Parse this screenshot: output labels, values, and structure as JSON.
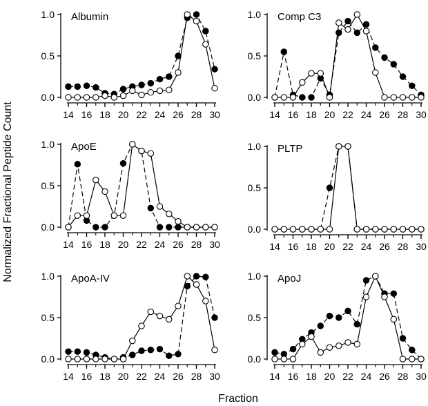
{
  "figure": {
    "xlabel": "Fraction",
    "ylabel": "Normalized Fractional Peptide Count"
  },
  "chart_data": [
    {
      "type": "line",
      "title": "Albumin",
      "x": [
        14,
        15,
        16,
        17,
        18,
        19,
        20,
        21,
        22,
        23,
        24,
        25,
        26,
        27,
        28,
        29,
        30
      ],
      "xlim": [
        14,
        30
      ],
      "ylim": [
        0,
        1
      ],
      "xticks": [
        14,
        16,
        18,
        20,
        22,
        24,
        26,
        28,
        30
      ],
      "yticks": [
        0.0,
        0.5,
        1.0
      ],
      "series": [
        {
          "marker": "filled",
          "line": "dashed",
          "values": [
            0.13,
            0.13,
            0.14,
            0.12,
            0.05,
            0.04,
            0.1,
            0.13,
            0.15,
            0.17,
            0.22,
            0.25,
            0.5,
            0.96,
            1.0,
            0.8,
            0.34
          ]
        },
        {
          "marker": "open",
          "line": "solid",
          "values": [
            0.0,
            0.0,
            0.0,
            0.0,
            0.02,
            0.0,
            0.02,
            0.08,
            0.03,
            0.06,
            0.08,
            0.09,
            0.3,
            1.0,
            0.92,
            0.64,
            0.11
          ]
        }
      ]
    },
    {
      "type": "line",
      "title": "Comp C3",
      "x": [
        14,
        15,
        16,
        17,
        18,
        19,
        20,
        21,
        22,
        23,
        24,
        25,
        26,
        27,
        28,
        29,
        30
      ],
      "xlim": [
        14,
        30
      ],
      "ylim": [
        0,
        1
      ],
      "xticks": [
        14,
        16,
        18,
        20,
        22,
        24,
        26,
        28,
        30
      ],
      "yticks": [
        0.0,
        0.5,
        1.0
      ],
      "series": [
        {
          "marker": "filled",
          "line": "dashed",
          "values": [
            0.0,
            0.55,
            0.03,
            0.0,
            0.0,
            0.23,
            0.03,
            0.78,
            0.92,
            0.78,
            0.88,
            0.6,
            0.48,
            0.4,
            0.25,
            0.14,
            0.03
          ]
        },
        {
          "marker": "open",
          "line": "solid",
          "values": [
            0.0,
            0.0,
            0.0,
            0.18,
            0.29,
            0.29,
            0.0,
            0.9,
            0.82,
            1.0,
            0.8,
            0.3,
            0.0,
            0.0,
            0.0,
            0.0,
            0.0
          ]
        }
      ]
    },
    {
      "type": "line",
      "title": "ApoE",
      "x": [
        14,
        15,
        16,
        17,
        18,
        19,
        20,
        21,
        22,
        23,
        24,
        25,
        26,
        27,
        28,
        29,
        30
      ],
      "xlim": [
        14,
        30
      ],
      "ylim": [
        0,
        1
      ],
      "xticks": [
        14,
        16,
        18,
        20,
        22,
        24,
        26,
        28,
        30
      ],
      "yticks": [
        0.0,
        0.5,
        1.0
      ],
      "series": [
        {
          "marker": "filled",
          "line": "dashed",
          "values": [
            0.0,
            0.76,
            0.08,
            0.0,
            0.0,
            0.14,
            0.77,
            1.0,
            0.92,
            0.23,
            0.0,
            0.0,
            0.0,
            0.0,
            0.0,
            0.0,
            0.0
          ]
        },
        {
          "marker": "open",
          "line": "solid",
          "values": [
            0.0,
            0.14,
            0.14,
            0.57,
            0.43,
            0.14,
            0.14,
            1.0,
            0.92,
            0.89,
            0.25,
            0.16,
            0.07,
            0.0,
            0.0,
            0.0,
            0.0
          ]
        }
      ]
    },
    {
      "type": "line",
      "title": "PLTP",
      "x": [
        14,
        15,
        16,
        17,
        18,
        19,
        20,
        21,
        22,
        23,
        24,
        25,
        26,
        27,
        28,
        29,
        30
      ],
      "xlim": [
        14,
        30
      ],
      "ylim": [
        0,
        1
      ],
      "xticks": [
        14,
        16,
        18,
        20,
        22,
        24,
        26,
        28,
        30
      ],
      "yticks": [
        0.0,
        0.5,
        1.0
      ],
      "series": [
        {
          "marker": "filled",
          "line": "dashed",
          "values": [
            0.0,
            0.0,
            0.0,
            0.0,
            0.0,
            0.0,
            0.5,
            1.0,
            1.0,
            0.0,
            0.0,
            0.0,
            0.0,
            0.0,
            0.0,
            0.0,
            0.0
          ]
        },
        {
          "marker": "open",
          "line": "solid",
          "values": [
            0.0,
            0.0,
            0.0,
            0.0,
            0.0,
            0.0,
            0.0,
            1.0,
            1.0,
            0.0,
            0.0,
            0.0,
            0.0,
            0.0,
            0.0,
            0.0,
            0.0
          ]
        }
      ]
    },
    {
      "type": "line",
      "title": "ApoA-IV",
      "x": [
        14,
        15,
        16,
        17,
        18,
        19,
        20,
        21,
        22,
        23,
        24,
        25,
        26,
        27,
        28,
        29,
        30
      ],
      "xlim": [
        14,
        30
      ],
      "ylim": [
        0,
        1
      ],
      "xticks": [
        14,
        16,
        18,
        20,
        22,
        24,
        26,
        28,
        30
      ],
      "yticks": [
        0.0,
        0.5,
        1.0
      ],
      "series": [
        {
          "marker": "filled",
          "line": "dashed",
          "values": [
            0.09,
            0.09,
            0.08,
            0.05,
            0.02,
            0.0,
            0.02,
            0.05,
            0.1,
            0.11,
            0.12,
            0.04,
            0.06,
            0.88,
            1.0,
            0.99,
            0.5
          ]
        },
        {
          "marker": "open",
          "line": "solid",
          "values": [
            0.0,
            0.0,
            0.0,
            0.0,
            0.0,
            0.0,
            0.0,
            0.22,
            0.4,
            0.57,
            0.52,
            0.48,
            0.64,
            1.0,
            0.9,
            0.7,
            0.11
          ]
        }
      ]
    },
    {
      "type": "line",
      "title": "ApoJ",
      "x": [
        14,
        15,
        16,
        17,
        18,
        19,
        20,
        21,
        22,
        23,
        24,
        25,
        26,
        27,
        28,
        29,
        30
      ],
      "xlim": [
        14,
        30
      ],
      "ylim": [
        0,
        1
      ],
      "xticks": [
        14,
        16,
        18,
        20,
        22,
        24,
        26,
        28,
        30
      ],
      "yticks": [
        0.0,
        0.5,
        1.0
      ],
      "series": [
        {
          "marker": "filled",
          "line": "dashed",
          "values": [
            0.08,
            0.06,
            0.12,
            0.24,
            0.32,
            0.4,
            0.52,
            0.5,
            0.58,
            0.42,
            0.95,
            1.0,
            0.79,
            0.79,
            0.25,
            0.11,
            0.0
          ]
        },
        {
          "marker": "open",
          "line": "solid",
          "values": [
            0.0,
            0.0,
            0.0,
            0.18,
            0.27,
            0.08,
            0.14,
            0.16,
            0.2,
            0.18,
            0.75,
            1.0,
            0.75,
            0.48,
            0.0,
            0.0,
            0.0
          ]
        }
      ]
    }
  ]
}
